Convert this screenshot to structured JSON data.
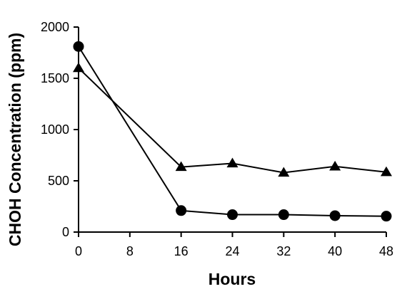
{
  "chart_data": {
    "type": "line",
    "xlabel": "Hours",
    "ylabel": "CHOH Concentration (ppm)",
    "xlim": [
      0,
      48
    ],
    "ylim": [
      0,
      2000
    ],
    "x_ticks": [
      "0",
      "8",
      "16",
      "24",
      "32",
      "40",
      "48"
    ],
    "y_ticks": [
      "0",
      "500",
      "1000",
      "1500",
      "2000"
    ],
    "grid": false,
    "series": [
      {
        "marker": "triangle",
        "x": [
          0,
          16,
          24,
          32,
          40,
          48
        ],
        "values": [
          1600,
          635,
          670,
          580,
          640,
          585
        ]
      },
      {
        "marker": "circle",
        "x": [
          0,
          16,
          24,
          32,
          40,
          48
        ],
        "values": [
          1810,
          210,
          170,
          170,
          160,
          155
        ]
      }
    ]
  }
}
